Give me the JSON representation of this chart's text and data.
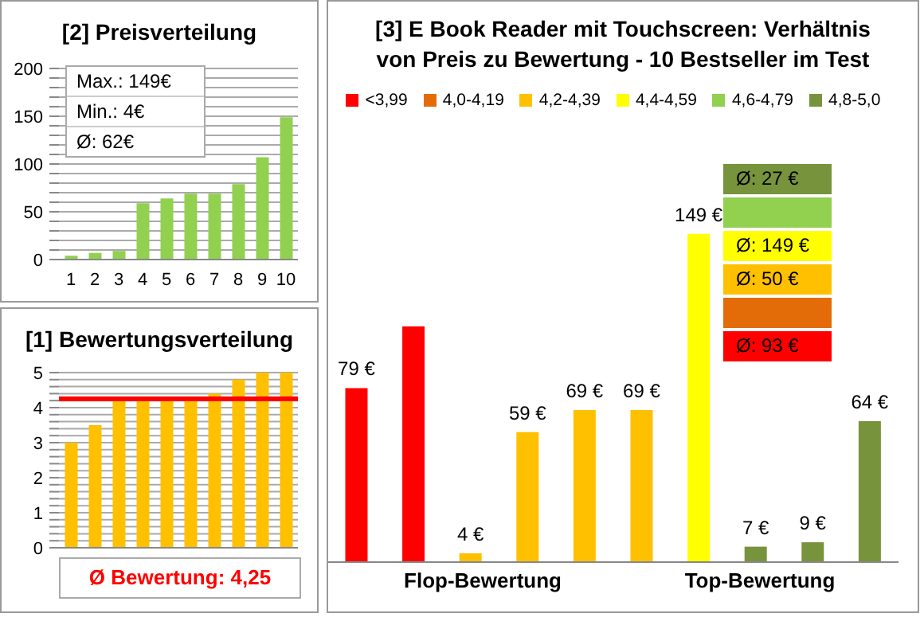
{
  "chart_data": [
    {
      "type": "bar",
      "title": "[2]   Preisverteilung",
      "categories": [
        "1",
        "2",
        "3",
        "4",
        "5",
        "6",
        "7",
        "8",
        "9",
        "10"
      ],
      "values": [
        4,
        7,
        9,
        59,
        64,
        69,
        69,
        79,
        107,
        149
      ],
      "color": "#92d050",
      "ylim": [
        0,
        200
      ],
      "yticks": [
        0,
        {
          "value": 10,
          "label": null
        },
        {
          "value": 20,
          "label": null
        },
        {
          "value": 30,
          "label": null
        },
        {
          "value": 40,
          "label": null
        },
        50,
        {
          "value": 60,
          "label": null
        },
        {
          "value": 70,
          "label": null
        },
        {
          "value": 80,
          "label": null
        },
        {
          "value": 90,
          "label": null
        },
        100,
        {
          "value": 110,
          "label": null
        },
        {
          "value": 120,
          "label": null
        },
        {
          "value": 130,
          "label": null
        },
        {
          "value": 140,
          "label": null
        },
        150,
        {
          "value": 160,
          "label": null
        },
        {
          "value": 170,
          "label": null
        },
        {
          "value": 180,
          "label": null
        },
        {
          "value": 190,
          "label": null
        },
        200
      ],
      "grid": "y",
      "annotations": [
        "Max.: 149€",
        "Min.: 4€",
        "Ø: 62€"
      ]
    },
    {
      "type": "bar",
      "title": "[3]   E Book Reader mit Touchscreen: Verhältnis von Preis zu Bewertung - 10 Bestseller im Test",
      "categories": [
        null,
        null,
        null,
        null,
        null,
        null,
        null,
        null,
        null,
        null
      ],
      "stacked": true,
      "legend": "top",
      "series": [
        {
          "name": "<3,99",
          "color": "#ff0000",
          "values": [
            79,
            107,
            null,
            null,
            null,
            null,
            null,
            null,
            null,
            null
          ],
          "value_labels": [
            "79 €",
            null,
            null,
            null,
            null,
            null,
            null,
            null,
            null,
            null
          ]
        },
        {
          "name": "4,0-4,19",
          "color": "#e36c09",
          "values": [
            null,
            null,
            null,
            null,
            null,
            null,
            null,
            null,
            null,
            null
          ],
          "value_labels": [
            null,
            null,
            null,
            null,
            null,
            null,
            null,
            null,
            null,
            null
          ]
        },
        {
          "name": "4,2-4,39",
          "color": "#ffc000",
          "values": [
            null,
            null,
            4,
            59,
            69,
            69,
            null,
            null,
            null,
            null
          ],
          "value_labels": [
            null,
            null,
            "4 €",
            "59 €",
            "69 €",
            "69 €",
            null,
            null,
            null,
            null
          ]
        },
        {
          "name": "4,4-4,59",
          "color": "#ffff00",
          "values": [
            null,
            null,
            null,
            null,
            null,
            null,
            149,
            null,
            null,
            null
          ],
          "value_labels": [
            null,
            null,
            null,
            null,
            null,
            null,
            "149 €",
            null,
            null,
            null
          ]
        },
        {
          "name": "4,6-4,79",
          "color": "#92d050",
          "values": [
            null,
            null,
            null,
            null,
            null,
            null,
            null,
            null,
            null,
            null
          ],
          "value_labels": [
            null,
            null,
            null,
            null,
            null,
            null,
            null,
            null,
            null,
            null
          ]
        },
        {
          "name": "4,8-5,0",
          "color": "#77933c",
          "values": [
            null,
            null,
            null,
            null,
            null,
            null,
            null,
            7,
            9,
            64
          ],
          "value_labels": [
            null,
            null,
            null,
            null,
            null,
            null,
            null,
            "7 €",
            "9 €",
            "64 €"
          ]
        }
      ],
      "annotations": [
        "Ø: 27 €",
        "Ø: 149 €",
        "Ø: 50 €",
        "Ø: 93 €",
        "Flop-Bewertung",
        "Top-Bewertung"
      ]
    },
    {
      "type": "bar",
      "title": "[1]   Bewertungsverteilung",
      "categories": [
        null,
        null,
        null,
        null,
        null,
        null,
        null,
        null,
        null,
        null
      ],
      "values": [
        3.0,
        3.5,
        4.2,
        4.2,
        4.2,
        4.2,
        4.4,
        4.8,
        5.0,
        5.0
      ],
      "color": "#ffc000",
      "ylim": [
        0,
        5
      ],
      "yticks": [
        0,
        {
          "value": 0.2,
          "label": null
        },
        {
          "value": 0.4,
          "label": null
        },
        {
          "value": 0.6,
          "label": null
        },
        {
          "value": 0.8,
          "label": null
        },
        1,
        {
          "value": 1.2,
          "label": null
        },
        {
          "value": 1.4,
          "label": null
        },
        {
          "value": 1.6,
          "label": null
        },
        {
          "value": 1.8,
          "label": null
        },
        2,
        {
          "value": 2.2,
          "label": null
        },
        {
          "value": 2.4,
          "label": null
        },
        {
          "value": 2.6,
          "label": null
        },
        {
          "value": 2.8,
          "label": null
        },
        3,
        {
          "value": 3.2,
          "label": null
        },
        {
          "value": 3.4,
          "label": null
        },
        {
          "value": 3.6,
          "label": null
        },
        {
          "value": 3.8,
          "label": null
        },
        4,
        {
          "value": 4.2,
          "label": null
        },
        {
          "value": 4.4,
          "label": null
        },
        {
          "value": 4.6,
          "label": null
        },
        {
          "value": 4.8,
          "label": null
        },
        5
      ],
      "grid": "y",
      "ref_lines": [
        {
          "axis": "y",
          "value": 4.25,
          "color": "#ff0000"
        }
      ],
      "annotations": [
        "Ø Bewertung: 4,25"
      ]
    }
  ]
}
